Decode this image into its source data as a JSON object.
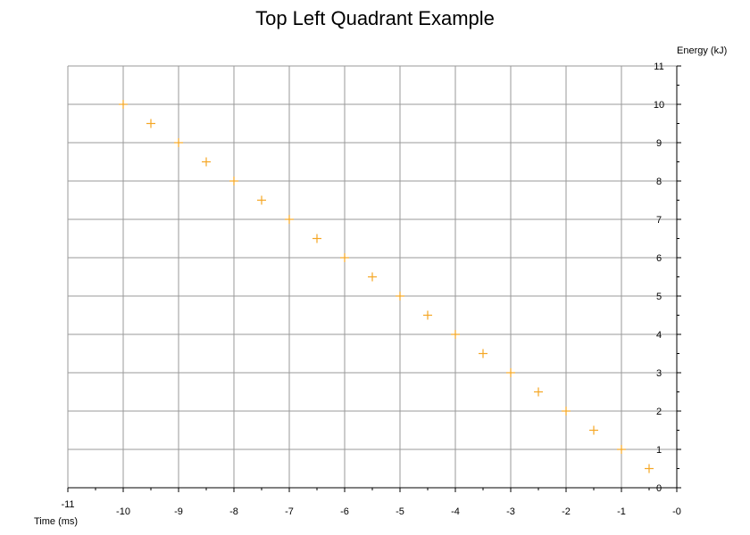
{
  "chart_data": {
    "type": "scatter",
    "title": "Top Left Quadrant Example",
    "xlabel": "Time (ms)",
    "ylabel": "Energy (kJ)",
    "xlim": [
      -11,
      0
    ],
    "ylim": [
      0,
      11
    ],
    "x_ticks": [
      "-11",
      "-10",
      "-9",
      "-8",
      "-7",
      "-6",
      "-5",
      "-4",
      "-3",
      "-2",
      "-1",
      "-0"
    ],
    "y_ticks": [
      "0",
      "1",
      "2",
      "3",
      "4",
      "5",
      "6",
      "7",
      "8",
      "9",
      "10",
      "11"
    ],
    "grid": true,
    "marker": "plus",
    "marker_color": "#f5a623",
    "points": [
      {
        "x": -10,
        "y": 10
      },
      {
        "x": -9.5,
        "y": 9.5
      },
      {
        "x": -9,
        "y": 9
      },
      {
        "x": -8.5,
        "y": 8.5
      },
      {
        "x": -8,
        "y": 8
      },
      {
        "x": -7.5,
        "y": 7.5
      },
      {
        "x": -7,
        "y": 7
      },
      {
        "x": -6.5,
        "y": 6.5
      },
      {
        "x": -6,
        "y": 6
      },
      {
        "x": -5.5,
        "y": 5.5
      },
      {
        "x": -5,
        "y": 5
      },
      {
        "x": -4.5,
        "y": 4.5
      },
      {
        "x": -4,
        "y": 4
      },
      {
        "x": -3.5,
        "y": 3.5
      },
      {
        "x": -3,
        "y": 3
      },
      {
        "x": -2.5,
        "y": 2.5
      },
      {
        "x": -2,
        "y": 2
      },
      {
        "x": -1.5,
        "y": 1.5
      },
      {
        "x": -1,
        "y": 1
      },
      {
        "x": -0.5,
        "y": 0.5
      }
    ]
  }
}
